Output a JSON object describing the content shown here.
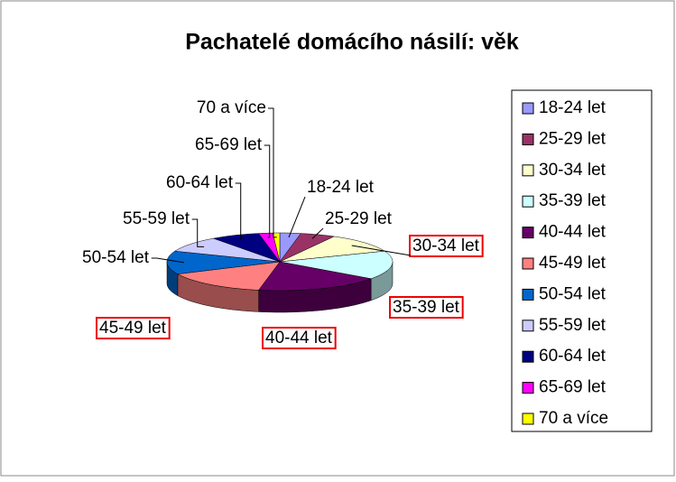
{
  "chart_data": {
    "type": "pie3d",
    "title": "Pachatelé domácího násilí: věk",
    "categories": [
      "18-24 let",
      "25-29 let",
      "30-34 let",
      "35-39 let",
      "40-44 let",
      "45-49 let",
      "50-54 let",
      "55-59 let",
      "60-64 let",
      "65-69 let",
      "70 a více"
    ],
    "values": [
      3,
      5,
      11,
      16,
      18,
      15,
      13,
      9,
      7,
      2,
      1
    ],
    "colors": [
      "#9999ff",
      "#993366",
      "#ffffcc",
      "#ccffff",
      "#660066",
      "#ff8080",
      "#0066cc",
      "#ccccff",
      "#000080",
      "#ff00ff",
      "#ffff00"
    ],
    "highlighted": [
      false,
      false,
      true,
      true,
      true,
      true,
      false,
      false,
      false,
      false,
      false
    ],
    "legend": "right"
  }
}
